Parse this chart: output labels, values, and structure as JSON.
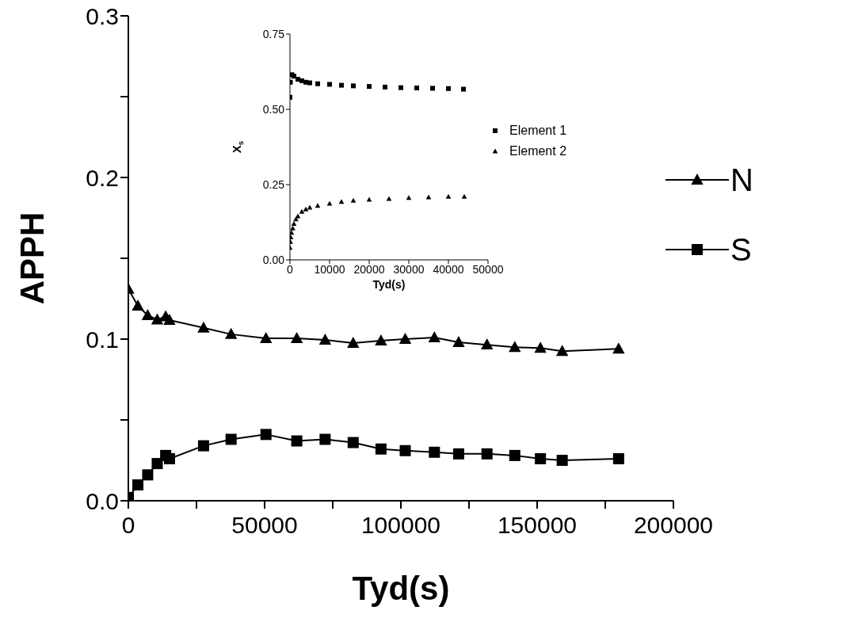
{
  "chart_data": [
    {
      "type": "line",
      "xlabel": "Tyd(s)",
      "ylabel": "APPH",
      "legend": "right",
      "xlim": [
        0,
        200000
      ],
      "ylim": [
        0,
        0.3
      ],
      "xticks": [
        0,
        {
          "value": 25000,
          "label": null
        },
        50000,
        {
          "value": 75000,
          "label": null
        },
        100000,
        {
          "value": 125000,
          "label": null
        },
        150000,
        {
          "value": 175000,
          "label": null
        },
        200000
      ],
      "yticks": [
        {
          "value": 0,
          "label": "0.0"
        },
        {
          "value": 0.05,
          "label": null
        },
        {
          "value": 0.1,
          "label": "0.1"
        },
        {
          "value": 0.15,
          "label": null
        },
        {
          "value": 0.2,
          "label": "0.2"
        },
        {
          "value": 0.25,
          "label": null
        },
        {
          "value": 0.3,
          "label": "0.3"
        }
      ],
      "x": [
        0,
        3500,
        7100,
        10600,
        13700,
        15100,
        27600,
        37700,
        50500,
        61800,
        72200,
        82500,
        92700,
        101600,
        112300,
        121200,
        131600,
        141800,
        151200,
        159200,
        179900
      ],
      "series": [
        {
          "name": "N",
          "color": "#000000",
          "marker": "triangle",
          "values": [
            0.131,
            0.1206,
            0.1147,
            0.112,
            0.114,
            0.1118,
            0.107,
            0.103,
            0.1005,
            0.1005,
            0.0995,
            0.0975,
            0.099,
            0.1,
            0.101,
            0.098,
            0.0965,
            0.095,
            0.0945,
            0.0925,
            0.094
          ]
        },
        {
          "name": "S",
          "color": "#000000",
          "marker": "square",
          "values": [
            0.002,
            0.0098,
            0.016,
            0.023,
            0.028,
            0.026,
            0.034,
            0.038,
            0.041,
            0.037,
            0.038,
            0.036,
            0.032,
            0.031,
            0.03,
            0.029,
            0.029,
            0.028,
            0.026,
            0.025,
            0.026
          ]
        }
      ]
    },
    {
      "type": "scatter",
      "xlabel": "Tyd(s)",
      "ylabel": "X$_{s}$",
      "legend": "right",
      "xlim": [
        0,
        50000
      ],
      "ylim": [
        0,
        0.75
      ],
      "xticks": [
        0,
        10000,
        20000,
        30000,
        40000,
        50000
      ],
      "yticks": [
        {
          "value": 0,
          "label": "0.00"
        },
        {
          "value": 0.25,
          "label": "0.25"
        },
        {
          "value": 0.5,
          "label": "0.50"
        },
        {
          "value": 0.75,
          "label": "0.75"
        }
      ],
      "series": [
        {
          "name": "Element 1",
          "color": "#000000",
          "marker": "square",
          "x": [
            0,
            100,
            500,
            1000,
            2000,
            3000,
            4000,
            5000,
            7000,
            10000,
            13000,
            16000,
            20000,
            24000,
            28000,
            32000,
            36000,
            40000,
            43800
          ],
          "values": [
            0.54,
            0.59,
            0.615,
            0.61,
            0.6,
            0.595,
            0.59,
            0.588,
            0.585,
            0.583,
            0.58,
            0.578,
            0.576,
            0.574,
            0.572,
            0.571,
            0.57,
            0.569,
            0.567
          ]
        },
        {
          "name": "Element 2",
          "color": "#000000",
          "marker": "triangle",
          "x": [
            0,
            100,
            200,
            400,
            700,
            1000,
            1500,
            2000,
            3000,
            4000,
            5000,
            7000,
            10000,
            13000,
            16000,
            20000,
            25000,
            30000,
            35000,
            40000,
            44000
          ],
          "values": [
            0.04,
            0.06,
            0.075,
            0.09,
            0.105,
            0.12,
            0.135,
            0.145,
            0.16,
            0.168,
            0.174,
            0.18,
            0.187,
            0.193,
            0.197,
            0.2,
            0.203,
            0.206,
            0.208,
            0.21,
            0.21
          ]
        }
      ]
    }
  ]
}
